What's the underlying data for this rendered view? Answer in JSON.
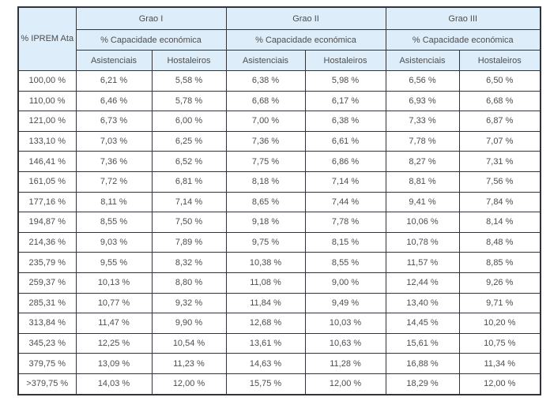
{
  "table": {
    "corner_header": "% IPREM Ata",
    "groups": [
      {
        "label": "Grao I",
        "capacity_label": "% Capacidade económica",
        "columns": [
          "Asistenciais",
          "Hostaleiros"
        ]
      },
      {
        "label": "Grao II",
        "capacity_label": "% Capacidade económica",
        "columns": [
          "Asistenciais",
          "Hostaleiros"
        ]
      },
      {
        "label": "Grao III",
        "capacity_label": "% Capacidade económica",
        "columns": [
          "Asistenciais",
          "Hostaleiros"
        ]
      }
    ],
    "rows": [
      {
        "iprem": "100,00 %",
        "values": [
          "6,21 %",
          "5,58 %",
          "6,38 %",
          "5,98 %",
          "6,56 %",
          "6,50 %"
        ]
      },
      {
        "iprem": "110,00 %",
        "values": [
          "6,46 %",
          "5,78 %",
          "6,68 %",
          "6,17 %",
          "6,93 %",
          "6,68 %"
        ]
      },
      {
        "iprem": "121,00 %",
        "values": [
          "6,73 %",
          "6,00 %",
          "7,00 %",
          "6,38 %",
          "7,33 %",
          "6,87 %"
        ]
      },
      {
        "iprem": "133,10 %",
        "values": [
          "7,03 %",
          "6,25 %",
          "7,36 %",
          "6,61 %",
          "7,78 %",
          "7,07 %"
        ]
      },
      {
        "iprem": "146,41 %",
        "values": [
          "7,36 %",
          "6,52 %",
          "7,75 %",
          "6,86 %",
          "8,27 %",
          "7,31 %"
        ]
      },
      {
        "iprem": "161,05 %",
        "values": [
          "7,72 %",
          "6,81 %",
          "8,18 %",
          "7,14 %",
          "8,81 %",
          "7,56 %"
        ]
      },
      {
        "iprem": "177,16 %",
        "values": [
          "8,11 %",
          "7,14 %",
          "8,65 %",
          "7,44 %",
          "9,41 %",
          "7,84 %"
        ]
      },
      {
        "iprem": "194,87 %",
        "values": [
          "8,55 %",
          "7,50 %",
          "9,18 %",
          "7,78 %",
          "10,06 %",
          "8,14 %"
        ]
      },
      {
        "iprem": "214,36 %",
        "values": [
          "9,03 %",
          "7,89 %",
          "9,75 %",
          "8,15 %",
          "10,78 %",
          "8,48 %"
        ]
      },
      {
        "iprem": "235,79 %",
        "values": [
          "9,55 %",
          "8,32 %",
          "10,38 %",
          "8,55 %",
          "11,57 %",
          "8,85 %"
        ]
      },
      {
        "iprem": "259,37 %",
        "values": [
          "10,13 %",
          "8,80 %",
          "11,08 %",
          "9,00 %",
          "12,44 %",
          "9,26 %"
        ]
      },
      {
        "iprem": "285,31 %",
        "values": [
          "10,77 %",
          "9,32 %",
          "11,84 %",
          "9,49 %",
          "13,40 %",
          "9,71 %"
        ]
      },
      {
        "iprem": "313,84 %",
        "values": [
          "11,47 %",
          "9,90 %",
          "12,68 %",
          "10,03 %",
          "14,45 %",
          "10,20 %"
        ]
      },
      {
        "iprem": "345,23 %",
        "values": [
          "12,25 %",
          "10,54 %",
          "13,61 %",
          "10,63 %",
          "15,61 %",
          "10,75 %"
        ]
      },
      {
        "iprem": "379,75 %",
        "values": [
          "13,09 %",
          "11,23 %",
          "14,63 %",
          "11,28 %",
          "16,88 %",
          "11,34 %"
        ]
      },
      {
        "iprem": ">379,75 %",
        "values": [
          "14,03 %",
          "12,00 %",
          "15,75 %",
          "12,00 %",
          "18,29 %",
          "12,00 %"
        ]
      }
    ],
    "colors": {
      "header_bg": "#ddedfa",
      "border": "#33333b",
      "text": "#4d4d4d"
    }
  }
}
